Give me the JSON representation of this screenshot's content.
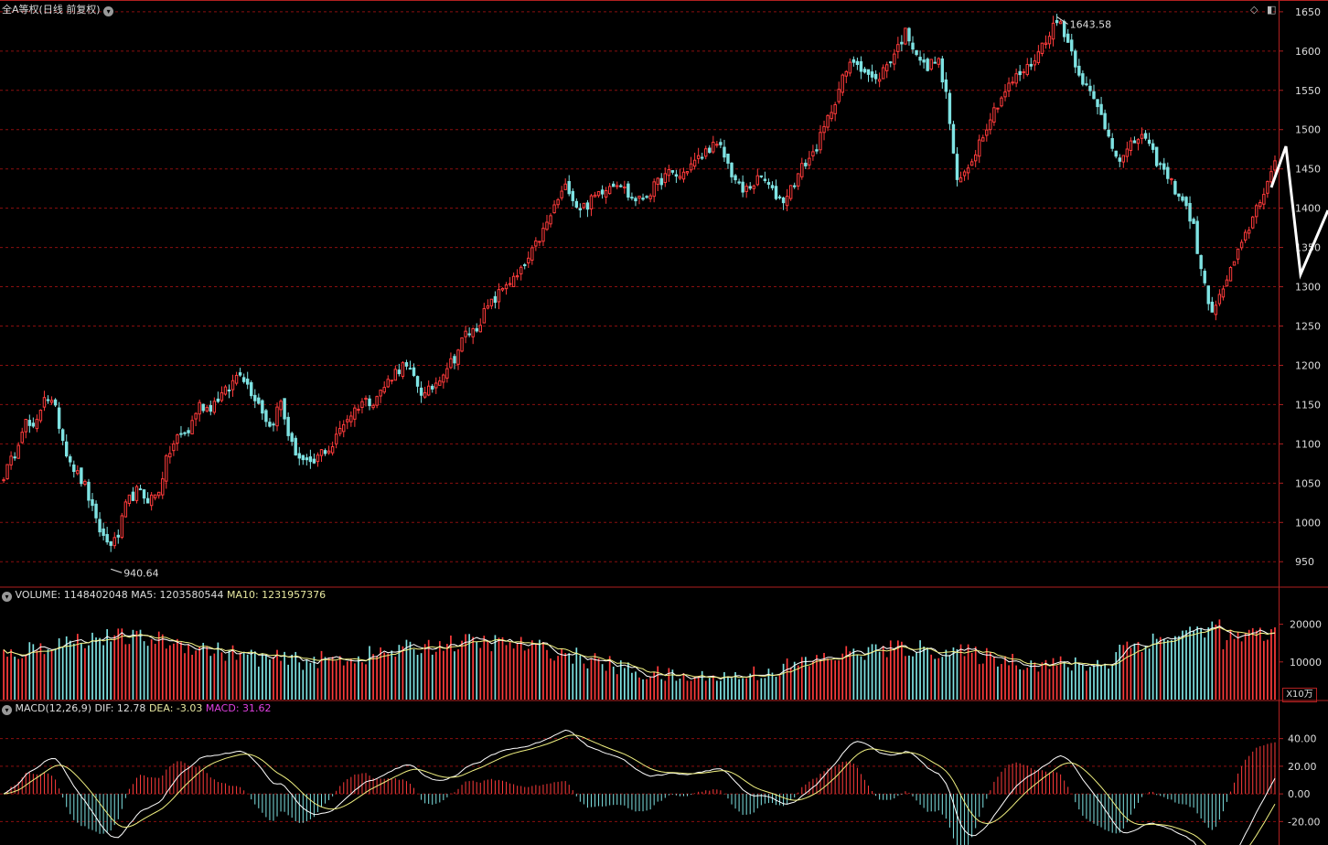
{
  "header": {
    "title": "全A等权(日线 前复权)",
    "volume_label": "VOLUME: 1148402048",
    "volume_ma5": "MA5: 1203580544",
    "volume_ma10": "MA10: 1231957376",
    "macd_label": "MACD(12,26,9)",
    "macd_dif": "DIF: 12.78",
    "macd_dea": "DEA: -3.03",
    "macd_val": "MACD: 31.62",
    "unit_badge": "X10万"
  },
  "colors": {
    "up": "#ff3b3b",
    "down": "#7fe3e3",
    "grid": "#8a0f0f",
    "axis": "#b02020",
    "ma5": "#ffffff",
    "ma10": "#f0f080",
    "macd_label": "#e040e0"
  },
  "chart_data": [
    {
      "type": "candlestick",
      "panel": "price",
      "ylim": [
        920,
        1665
      ],
      "yticks": [
        950,
        1000,
        1050,
        1100,
        1150,
        1200,
        1250,
        1300,
        1350,
        1400,
        1450,
        1500,
        1550,
        1600,
        1650
      ],
      "annotations": [
        {
          "text": "1643.58",
          "value": 1643.58,
          "type": "max"
        },
        {
          "text": "940.64",
          "value": 940.64,
          "type": "min"
        }
      ],
      "close_path": [
        1060,
        1085,
        1130,
        1115,
        1165,
        1145,
        1095,
        1065,
        1045,
        1000,
        975,
        975,
        1025,
        1040,
        1030,
        1035,
        1085,
        1110,
        1115,
        1150,
        1145,
        1160,
        1170,
        1195,
        1170,
        1150,
        1120,
        1155,
        1100,
        1080,
        1070,
        1090,
        1095,
        1125,
        1140,
        1155,
        1155,
        1170,
        1190,
        1200,
        1185,
        1160,
        1175,
        1195,
        1210,
        1240,
        1245,
        1270,
        1285,
        1305,
        1310,
        1330,
        1355,
        1380,
        1410,
        1430,
        1400,
        1405,
        1420,
        1430,
        1435,
        1415,
        1410,
        1420,
        1435,
        1445,
        1440,
        1455,
        1465,
        1480,
        1475,
        1445,
        1420,
        1430,
        1440,
        1420,
        1410,
        1430,
        1455,
        1470,
        1500,
        1535,
        1570,
        1590,
        1575,
        1560,
        1580,
        1600,
        1625,
        1600,
        1575,
        1595,
        1540,
        1430,
        1450,
        1480,
        1510,
        1535,
        1555,
        1570,
        1580,
        1600,
        1625,
        1640,
        1605,
        1570,
        1545,
        1520,
        1485,
        1460,
        1480,
        1495,
        1470,
        1450,
        1430,
        1410,
        1380,
        1305,
        1265,
        1300,
        1330,
        1360,
        1395,
        1425,
        1455
      ]
    },
    {
      "type": "bar",
      "panel": "volume",
      "unit": "X10万",
      "ylim": [
        0,
        25000
      ],
      "yticks": [
        10000,
        20000
      ],
      "ma_series": [
        {
          "name": "MA5"
        },
        {
          "name": "MA10"
        }
      ]
    },
    {
      "type": "bar",
      "panel": "macd",
      "ylim": [
        -35,
        55
      ],
      "yticks": [
        40,
        20,
        0,
        -20
      ],
      "ytick_labels": [
        "40.00",
        "20.00",
        "0.00",
        "-20.00"
      ],
      "lines": [
        {
          "name": "DIF"
        },
        {
          "name": "DEA"
        }
      ]
    }
  ]
}
